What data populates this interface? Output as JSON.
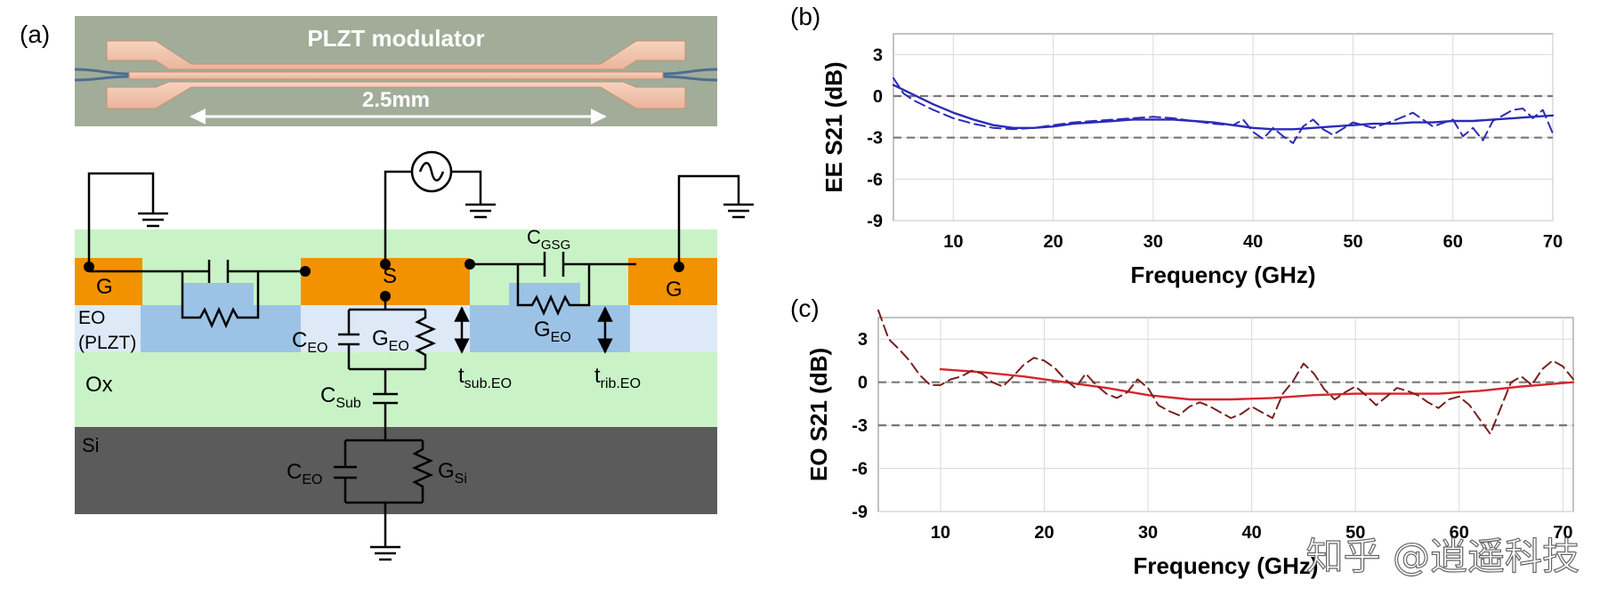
{
  "panels": {
    "a": "(a)",
    "b": "(b)",
    "c": "(c)"
  },
  "photo": {
    "title": "PLZT modulator",
    "length": "2.5mm"
  },
  "circuit": {
    "g_left": "G",
    "s": "S",
    "g_right": "G",
    "eo_line1": "EO",
    "eo_line2": "(PLZT)",
    "ox": "Ox",
    "si": "Si",
    "c_eo": {
      "main": "C",
      "sub": "EO"
    },
    "g_eo": {
      "main": "G",
      "sub": "EO"
    },
    "c_gsg": {
      "main": "C",
      "sub": "GSG"
    },
    "c_sub": {
      "main": "C",
      "sub": "Sub"
    },
    "g_si": {
      "main": "G",
      "sub": "Si"
    },
    "t_sub": {
      "main": "t",
      "sub": "sub.EO"
    },
    "t_rib": {
      "main": "t",
      "sub": "rib.EO"
    }
  },
  "watermark": "知乎 @逍遥科技",
  "colors": {
    "ee_curve": "#2b2bb8",
    "eo_curve": "#d6262c",
    "eo_meas": "#7a1f1f",
    "electrode": "#f39200",
    "eo_layer": "#9cc3e6",
    "ox": "#c9f3c7",
    "si": "#5b5b5b"
  },
  "chart_data": [
    {
      "type": "line",
      "panel": "(b)",
      "xlabel": "Frequency (GHz)",
      "ylabel": "EE S21 (dB)",
      "xlim": [
        4,
        70
      ],
      "ylim": [
        -9,
        4.5
      ],
      "xticks": [
        10,
        20,
        30,
        40,
        50,
        60,
        70
      ],
      "yticks": [
        3,
        0,
        -3,
        -6,
        -9
      ],
      "grid": true,
      "reference_lines": [
        0,
        -3
      ],
      "series": [
        {
          "style": "solid",
          "x": [
            4,
            6,
            8,
            10,
            12,
            14,
            16,
            18,
            20,
            22,
            24,
            26,
            28,
            30,
            32,
            34,
            36,
            38,
            40,
            42,
            44,
            46,
            48,
            50,
            52,
            54,
            56,
            58,
            60,
            62,
            64,
            66,
            68,
            70
          ],
          "y": [
            0.8,
            0.1,
            -0.6,
            -1.2,
            -1.7,
            -2.1,
            -2.3,
            -2.3,
            -2.2,
            -2.0,
            -1.9,
            -1.8,
            -1.7,
            -1.7,
            -1.7,
            -1.8,
            -1.9,
            -2.1,
            -2.3,
            -2.4,
            -2.4,
            -2.3,
            -2.2,
            -2.1,
            -2.0,
            -2.0,
            -1.9,
            -1.9,
            -1.8,
            -1.8,
            -1.7,
            -1.6,
            -1.5,
            -1.4
          ]
        },
        {
          "style": "dashed",
          "x": [
            4,
            5,
            6,
            8,
            10,
            12,
            14,
            16,
            18,
            20,
            22,
            24,
            26,
            28,
            30,
            32,
            34,
            36,
            38,
            39,
            40,
            41,
            42,
            43,
            44,
            45,
            46,
            47,
            48,
            50,
            52,
            54,
            56,
            58,
            60,
            61,
            62,
            63,
            64,
            66,
            67,
            68,
            69,
            70
          ],
          "y": [
            1.3,
            0.2,
            -0.3,
            -1.0,
            -1.6,
            -2.0,
            -2.3,
            -2.4,
            -2.3,
            -2.1,
            -1.9,
            -1.8,
            -1.7,
            -1.6,
            -1.5,
            -1.6,
            -1.8,
            -2.0,
            -2.1,
            -1.7,
            -2.6,
            -3.1,
            -2.3,
            -2.9,
            -3.4,
            -2.2,
            -1.7,
            -2.4,
            -2.8,
            -1.9,
            -2.3,
            -1.8,
            -1.2,
            -2.2,
            -1.7,
            -2.9,
            -2.3,
            -3.2,
            -1.8,
            -1.0,
            -0.9,
            -1.6,
            -1.0,
            -2.7
          ]
        }
      ]
    },
    {
      "type": "line",
      "panel": "(c)",
      "xlabel": "Frequency (GHz)",
      "ylabel": "EO S21 (dB)",
      "xlim": [
        4,
        71
      ],
      "ylim": [
        -9,
        4.5
      ],
      "xticks": [
        10,
        20,
        30,
        40,
        50,
        60,
        70
      ],
      "yticks": [
        3,
        0,
        -3,
        -6,
        -9
      ],
      "grid": true,
      "reference_lines": [
        0,
        -3
      ],
      "series": [
        {
          "style": "solid",
          "x": [
            10,
            14,
            18,
            22,
            26,
            30,
            34,
            38,
            42,
            46,
            50,
            54,
            58,
            62,
            66,
            71
          ],
          "y": [
            0.9,
            0.7,
            0.4,
            0.0,
            -0.4,
            -0.9,
            -1.2,
            -1.2,
            -1.1,
            -0.9,
            -0.8,
            -0.8,
            -0.8,
            -0.6,
            -0.3,
            0.0
          ]
        },
        {
          "style": "dashed",
          "x": [
            4,
            5,
            6,
            7,
            8,
            9,
            10,
            11,
            12,
            13,
            14,
            15,
            16,
            17,
            18,
            19,
            20,
            21,
            22,
            23,
            24,
            25,
            26,
            27,
            28,
            29,
            30,
            31,
            32,
            33,
            34,
            35,
            36,
            37,
            38,
            39,
            40,
            41,
            42,
            43,
            44,
            45,
            46,
            47,
            48,
            49,
            50,
            51,
            52,
            53,
            54,
            55,
            56,
            57,
            58,
            59,
            60,
            61,
            62,
            63,
            64,
            65,
            66,
            67,
            68,
            69,
            70,
            71
          ],
          "y": [
            5.0,
            3.0,
            2.3,
            1.5,
            0.5,
            -0.2,
            -0.2,
            0.2,
            0.4,
            0.8,
            0.6,
            0.0,
            -0.3,
            0.4,
            1.2,
            1.7,
            1.5,
            1.0,
            0.2,
            -0.4,
            0.6,
            -0.2,
            -0.8,
            -1.1,
            -0.7,
            0.2,
            -0.4,
            -1.6,
            -2.0,
            -2.3,
            -1.7,
            -1.4,
            -1.7,
            -2.1,
            -2.5,
            -2.2,
            -1.7,
            -2.1,
            -2.5,
            -0.8,
            0.1,
            1.3,
            0.6,
            -0.5,
            -1.2,
            -0.7,
            -0.3,
            -0.9,
            -1.6,
            -1.0,
            -0.4,
            -0.6,
            -0.9,
            -1.4,
            -1.8,
            -1.2,
            -1.0,
            -1.6,
            -2.6,
            -3.6,
            -1.8,
            0.0,
            0.4,
            -0.2,
            0.9,
            1.5,
            1.1,
            0.2
          ]
        }
      ]
    }
  ]
}
